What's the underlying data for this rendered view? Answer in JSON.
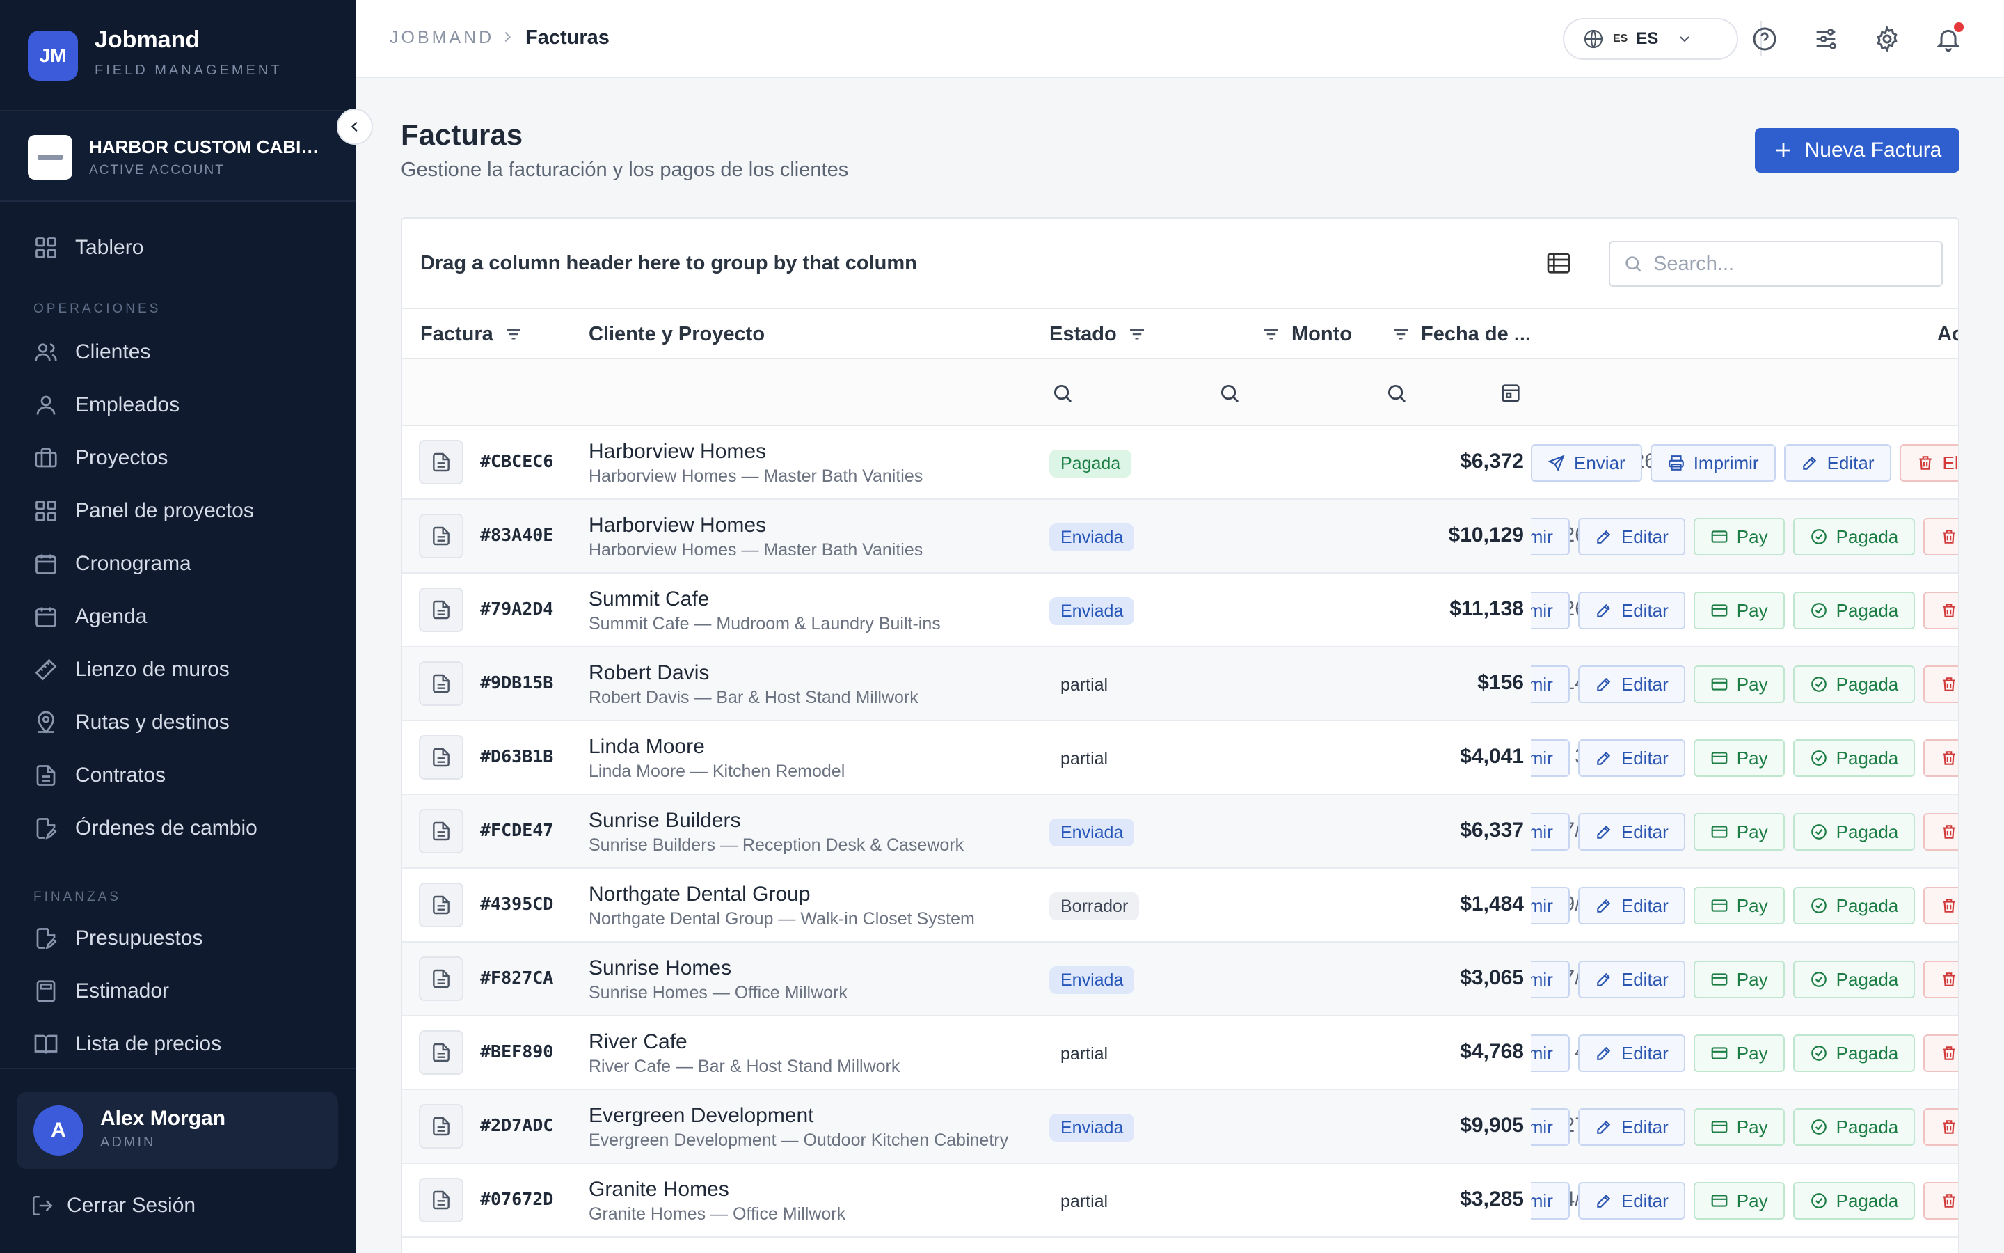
{
  "brand": {
    "logo_text": "JM",
    "name": "Jobmand",
    "subtitle": "FIELD MANAGEMENT"
  },
  "account": {
    "name": "HARBOR CUSTOM CABINETRY",
    "status": "ACTIVE ACCOUNT"
  },
  "sidebar": {
    "items": [
      {
        "label": "Tablero",
        "icon": "dashboard-icon"
      },
      {
        "label": "Clientes",
        "icon": "users-icon"
      },
      {
        "label": "Empleados",
        "icon": "user-icon"
      },
      {
        "label": "Proyectos",
        "icon": "briefcase-icon"
      },
      {
        "label": "Panel de proyectos",
        "icon": "grid-icon"
      },
      {
        "label": "Cronograma",
        "icon": "calendar-icon"
      },
      {
        "label": "Agenda",
        "icon": "calendar-icon"
      },
      {
        "label": "Lienzo de muros",
        "icon": "ruler-icon"
      },
      {
        "label": "Rutas y destinos",
        "icon": "map-pin-icon"
      },
      {
        "label": "Contratos",
        "icon": "file-text-icon"
      },
      {
        "label": "Órdenes de cambio",
        "icon": "file-edit-icon"
      },
      {
        "label": "Presupuestos",
        "icon": "file-edit-icon"
      },
      {
        "label": "Estimador",
        "icon": "calculator-icon"
      },
      {
        "label": "Lista de precios",
        "icon": "book-icon"
      }
    ],
    "sections": {
      "operaciones": "OPERACIONES",
      "finanzas": "FINANZAS"
    },
    "user": {
      "initial": "A",
      "name": "Alex Morgan",
      "role": "ADMIN"
    },
    "logout_label": "Cerrar Sesión"
  },
  "topbar": {
    "breadcrumb_root": "JOBMAND",
    "breadcrumb_current": "Facturas",
    "language": {
      "flag": "ES",
      "code": "ES"
    }
  },
  "page": {
    "title": "Facturas",
    "subtitle": "Gestione la facturación y los pagos de los clientes",
    "new_button_label": "Nueva Factura"
  },
  "grid": {
    "group_panel_text": "Drag a column header here to group by that column",
    "search_placeholder": "Search...",
    "columns": {
      "invoice": "Factura",
      "client": "Cliente y Proyecto",
      "status": "Estado",
      "amount": "Monto",
      "date": "Fecha de ...",
      "actions": "Acciones"
    },
    "first_row_actions": [
      "Enviar",
      "Imprimir",
      "Editar",
      "Eliminar"
    ],
    "row_actions": [
      "Imprimir",
      "Editar",
      "Pay",
      "Pagada",
      "Eliminar"
    ],
    "rows": [
      {
        "invoice": "#CBCEC6",
        "client": "Harborview Homes",
        "project": "Harborview Homes — Master Bath Vanities",
        "status": "Pagada",
        "status_kind": "pagada",
        "amount": "$6,372",
        "date": "12/6/2026"
      },
      {
        "invoice": "#83A40E",
        "client": "Harborview Homes",
        "project": "Harborview Homes — Master Bath Vanities",
        "status": "Enviada",
        "status_kind": "enviada",
        "amount": "$10,129",
        "date": "26/8/2026"
      },
      {
        "invoice": "#79A2D4",
        "client": "Summit Cafe",
        "project": "Summit Cafe — Mudroom & Laundry Built-ins",
        "status": "Enviada",
        "status_kind": "enviada",
        "amount": "$11,138",
        "date": "26/8/2026"
      },
      {
        "invoice": "#9DB15B",
        "client": "Robert Davis",
        "project": "Robert Davis — Bar & Host Stand Millwork",
        "status": "partial",
        "status_kind": "partial",
        "amount": "$156",
        "date": "14/8/2026"
      },
      {
        "invoice": "#D63B1B",
        "client": "Linda Moore",
        "project": "Linda Moore — Kitchen Remodel",
        "status": "partial",
        "status_kind": "partial",
        "amount": "$4,041",
        "date": "3/9/2026"
      },
      {
        "invoice": "#FCDE47",
        "client": "Sunrise Builders",
        "project": "Sunrise Builders — Reception Desk & Casework",
        "status": "Enviada",
        "status_kind": "enviada",
        "amount": "$6,337",
        "date": "17/10/2026"
      },
      {
        "invoice": "#4395CD",
        "client": "Northgate Dental Group",
        "project": "Northgate Dental Group — Walk-in Closet System",
        "status": "Borrador",
        "status_kind": "borrador",
        "amount": "$1,484",
        "date": "19/10/2026"
      },
      {
        "invoice": "#F827CA",
        "client": "Sunrise Homes",
        "project": "Sunrise Homes — Office Millwork",
        "status": "Enviada",
        "status_kind": "enviada",
        "amount": "$3,065",
        "date": "17/10/2026"
      },
      {
        "invoice": "#BEF890",
        "client": "River Cafe",
        "project": "River Cafe — Bar & Host Stand Millwork",
        "status": "partial",
        "status_kind": "partial",
        "amount": "$4,768",
        "date": "4/8/2026"
      },
      {
        "invoice": "#2D7ADC",
        "client": "Evergreen Development",
        "project": "Evergreen Development — Outdoor Kitchen Cabinetry",
        "status": "Enviada",
        "status_kind": "enviada",
        "amount": "$9,905",
        "date": "27/7/2026"
      },
      {
        "invoice": "#07672D",
        "client": "Granite Homes",
        "project": "Granite Homes — Office Millwork",
        "status": "partial",
        "status_kind": "partial",
        "amount": "$3,285",
        "date": "14/10/2026"
      }
    ]
  },
  "colors": {
    "sidebar_bg": "#0f1a2e",
    "accent": "#2f5fcf",
    "paid": "#1c7d45",
    "sent": "#2455b8",
    "danger": "#d23a3a"
  }
}
